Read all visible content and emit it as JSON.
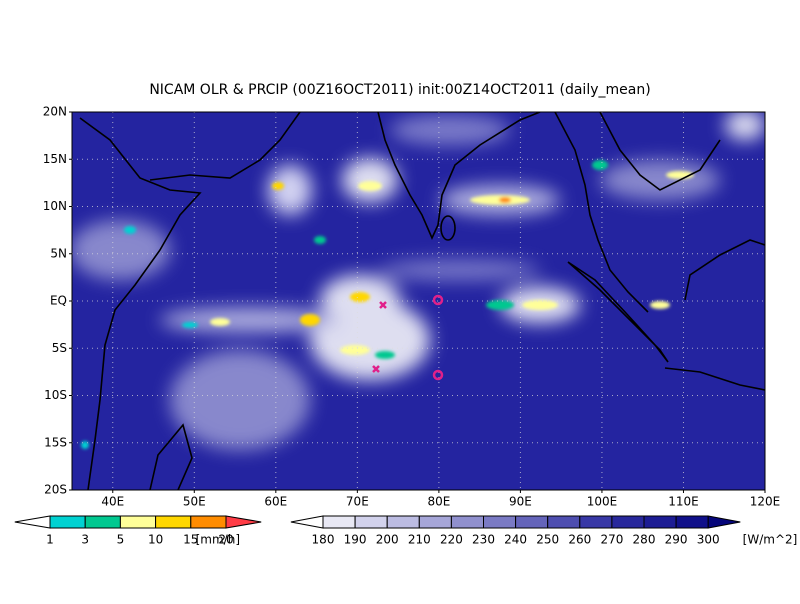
{
  "title": "NICAM OLR & PRCIP (00Z16OCT2011) init:00Z14OCT2011 (daily_mean)",
  "map": {
    "lon_range": [
      35,
      120
    ],
    "lat_range": [
      -20,
      20
    ],
    "lat_ticks": [
      {
        "value": 20,
        "label": "20N"
      },
      {
        "value": 15,
        "label": "15N"
      },
      {
        "value": 10,
        "label": "10N"
      },
      {
        "value": 5,
        "label": "5N"
      },
      {
        "value": 0,
        "label": "EQ"
      },
      {
        "value": -5,
        "label": "5S"
      },
      {
        "value": -10,
        "label": "10S"
      },
      {
        "value": -15,
        "label": "15S"
      },
      {
        "value": -20,
        "label": "20S"
      }
    ],
    "lon_ticks": [
      {
        "value": 40,
        "label": "40E"
      },
      {
        "value": 50,
        "label": "50E"
      },
      {
        "value": 60,
        "label": "60E"
      },
      {
        "value": 70,
        "label": "70E"
      },
      {
        "value": 80,
        "label": "80E"
      },
      {
        "value": 90,
        "label": "90E"
      },
      {
        "value": 100,
        "label": "100E"
      },
      {
        "value": 110,
        "label": "110E"
      },
      {
        "value": 120,
        "label": "120E"
      }
    ]
  },
  "precip_colorbar": {
    "levels": [
      1,
      3,
      5,
      10,
      15,
      20
    ],
    "unit": "[mm/h]",
    "colors": [
      "#ffffff",
      "#00d2d2",
      "#00c890",
      "#ffff99",
      "#ffd700",
      "#ff8c00",
      "#ff3c46"
    ]
  },
  "olr_colorbar": {
    "levels": [
      180,
      190,
      200,
      210,
      220,
      230,
      240,
      250,
      260,
      270,
      280,
      290,
      300
    ],
    "unit": "[W/m^2]",
    "colors": [
      "#ffffff",
      "#e8e8f4",
      "#d2d2ec",
      "#bcbce2",
      "#a6a6d8",
      "#9090ce",
      "#7a7ac4",
      "#6464ba",
      "#4e4eb0",
      "#3838a6",
      "#28289c",
      "#1c1c94",
      "#10108a",
      "#06067a"
    ]
  }
}
